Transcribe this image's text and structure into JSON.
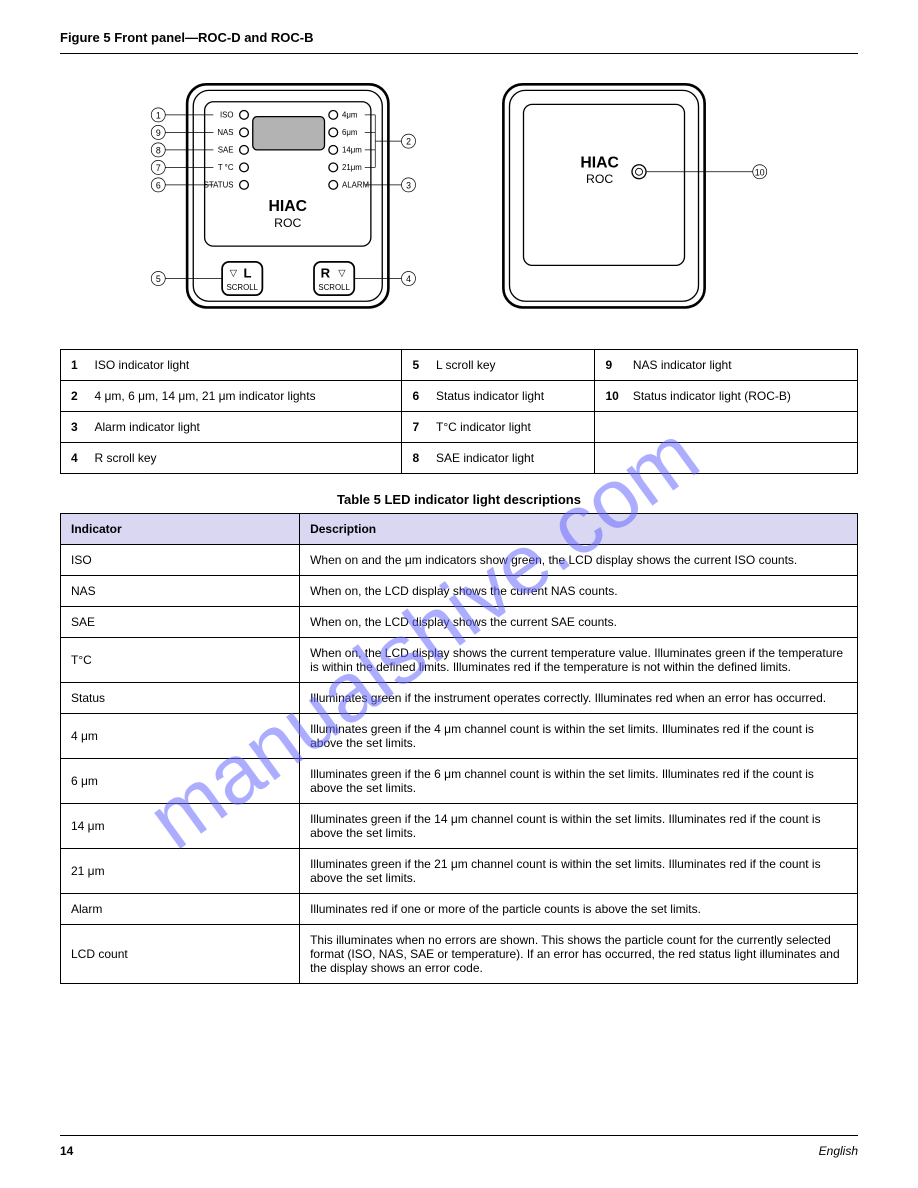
{
  "figure": {
    "label": "Figure 5",
    "title": "Front panel—ROC-D and ROC-B",
    "device_front": {
      "brand": "HIAC",
      "model": "ROC",
      "left_labels": [
        "ISO",
        "NAS",
        "SAE",
        "T °C",
        "STATUS"
      ],
      "right_labels": [
        "4μm",
        "6μm",
        "14μm",
        "21μm",
        "ALARM"
      ],
      "left_button": {
        "arrow": "▽",
        "letter": "L",
        "sub": "SCROLL"
      },
      "right_button": {
        "arrow": "▽",
        "letter": "R",
        "sub": "SCROLL"
      }
    },
    "device_blind": {
      "brand": "HIAC",
      "model": "ROC"
    },
    "callouts_left": [
      1,
      9,
      8,
      7,
      6,
      5
    ],
    "callouts_right_a": [
      2,
      3,
      4
    ],
    "callouts_blind": [
      10
    ]
  },
  "key_table": {
    "rows": [
      [
        {
          "num": "1",
          "text": "ISO indicator light"
        },
        {
          "num": "5",
          "text": "L scroll key"
        },
        {
          "num": "9",
          "text": "NAS indicator light"
        }
      ],
      [
        {
          "num": "2",
          "text": "4 μm, 6 μm, 14 μm, 21 μm indicator lights"
        },
        {
          "num": "6",
          "text": "Status indicator light"
        },
        {
          "num": "10",
          "text": "Status indicator light (ROC-B)"
        }
      ],
      [
        {
          "num": "3",
          "text": "Alarm indicator light"
        },
        {
          "num": "7",
          "text": "T°C indicator light"
        },
        {
          "num": "",
          "text": ""
        }
      ],
      [
        {
          "num": "4",
          "text": "R scroll key"
        },
        {
          "num": "8",
          "text": "SAE indicator light"
        },
        {
          "num": "",
          "text": ""
        }
      ]
    ]
  },
  "table5": {
    "caption": "Table 5 LED indicator light descriptions",
    "header": [
      "Indicator",
      "Description"
    ],
    "rows": [
      [
        "ISO",
        "When on and the μm indicators show green, the LCD display shows the current ISO counts."
      ],
      [
        "NAS",
        "When on, the LCD display shows the current NAS counts."
      ],
      [
        "SAE",
        "When on, the LCD display shows the current SAE counts."
      ],
      [
        "T°C",
        "When on, the LCD display shows the current temperature value. Illuminates green if the temperature is within the defined limits. Illuminates red if the temperature is not within the defined limits."
      ],
      [
        "Status",
        "Illuminates green if the instrument operates correctly. Illuminates red when an error has occurred."
      ],
      [
        "4 μm",
        "Illuminates green if the 4 μm channel count is within the set limits. Illuminates red if the count is above the set limits."
      ],
      [
        "6 μm",
        "Illuminates green if the 6 μm channel count is within the set limits. Illuminates red if the count is above the set limits."
      ],
      [
        "14 μm",
        "Illuminates green if the 14 μm channel count is within the set limits. Illuminates red if the count is above the set limits."
      ],
      [
        "21 μm",
        "Illuminates green if the 21 μm channel count is within the set limits. Illuminates red if the count is above the set limits."
      ],
      [
        "Alarm",
        "Illuminates red if one or more of the particle counts is above the set limits."
      ],
      [
        "LCD count",
        "This illuminates when no errors are shown. This shows the particle count for the currently selected format (ISO, NAS, SAE or temperature). If an error has occurred, the red status light illuminates and the display shows an error code."
      ]
    ]
  },
  "footer": {
    "page": "14",
    "text": "English"
  },
  "watermark": {
    "text": "manualshive.com",
    "color": "#6a6aff",
    "opacity": 0.6
  },
  "colors": {
    "table_header_bg": "#d9d7f2",
    "border": "#000000",
    "screen_fill": "#b3b3b3"
  }
}
